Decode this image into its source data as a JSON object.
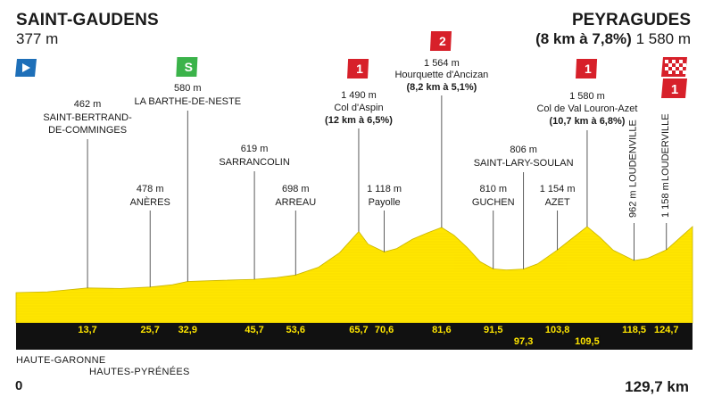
{
  "header": {
    "start_name": "SAINT-GAUDENS",
    "start_alt": "377 m",
    "finish_name": "PEYRAGUDES",
    "finish_climb": "(8 km à 7,8%)",
    "finish_alt": "1 580 m"
  },
  "footer": {
    "region1": "HAUTE-GARONNE",
    "region2": "HAUTES-PYRÉNÉES",
    "km_start": "0",
    "km_total": "129,7 km"
  },
  "colors": {
    "profile_fill": "#ffe600",
    "profile_edge": "#c8b300",
    "axis_band": "#111111",
    "km_text": "#ffe600",
    "climb_cat": "#d7202a",
    "sprint": "#3bb34a",
    "start_flag": "#1e6fb8"
  },
  "chart_data": {
    "type": "area",
    "title": "",
    "xlabel": "",
    "ylabel": "",
    "x_unit": "km",
    "y_unit": "m",
    "xlim": [
      0,
      129.7
    ],
    "profile": [
      [
        0,
        377
      ],
      [
        6,
        392
      ],
      [
        13.7,
        462
      ],
      [
        20,
        452
      ],
      [
        25.7,
        478
      ],
      [
        30,
        520
      ],
      [
        32.9,
        580
      ],
      [
        39,
        600
      ],
      [
        45.7,
        619
      ],
      [
        50,
        650
      ],
      [
        53.6,
        698
      ],
      [
        58,
        840
      ],
      [
        62,
        1100
      ],
      [
        65.7,
        1490
      ],
      [
        67.5,
        1260
      ],
      [
        70.6,
        1118
      ],
      [
        73,
        1180
      ],
      [
        76,
        1350
      ],
      [
        79,
        1470
      ],
      [
        81.6,
        1564
      ],
      [
        84,
        1420
      ],
      [
        86.5,
        1200
      ],
      [
        89,
        940
      ],
      [
        91.5,
        810
      ],
      [
        94,
        790
      ],
      [
        97.3,
        806
      ],
      [
        100,
        900
      ],
      [
        103.8,
        1154
      ],
      [
        106,
        1320
      ],
      [
        109.5,
        1580
      ],
      [
        112,
        1380
      ],
      [
        114.5,
        1150
      ],
      [
        118.5,
        962
      ],
      [
        121,
        1000
      ],
      [
        124.7,
        1158
      ],
      [
        129.7,
        1580
      ]
    ],
    "waypoints": [
      {
        "km": 13.7,
        "km_label": "13,7",
        "alt": "462 m",
        "name": "SAINT-BERTRAND-\nDE-COMMINGES"
      },
      {
        "km": 25.7,
        "km_label": "25,7",
        "alt": "478 m",
        "name": "ANÈRES"
      },
      {
        "km": 32.9,
        "km_label": "32,9",
        "alt": "580 m",
        "name": "LA BARTHE-DE-NESTE",
        "badge": "sprint"
      },
      {
        "km": 45.7,
        "km_label": "45,7",
        "alt": "619 m",
        "name": "SARRANCOLIN"
      },
      {
        "km": 53.6,
        "km_label": "53,6",
        "alt": "698 m",
        "name": "ARREAU"
      },
      {
        "km": 65.7,
        "km_label": "65,7",
        "alt": "1 490 m",
        "name": "Col d'Aspin",
        "detail": "(12 km à 6,5%)",
        "badge": "1"
      },
      {
        "km": 70.6,
        "km_label": "70,6",
        "alt": "1 118 m",
        "name": "Payolle"
      },
      {
        "km": 81.6,
        "km_label": "81,6",
        "alt": "1 564 m",
        "name": "Hourquette d'Ancizan",
        "detail": "(8,2 km à 5,1%)",
        "badge": "2"
      },
      {
        "km": 91.5,
        "km_label": "91,5",
        "alt": "810 m",
        "name": "GUCHEN"
      },
      {
        "km": 97.3,
        "km_label": "97,3",
        "alt": "806 m",
        "name": "SAINT-LARY-SOULAN"
      },
      {
        "km": 103.8,
        "km_label": "103,8",
        "alt": "1 154 m",
        "name": "AZET"
      },
      {
        "km": 109.5,
        "km_label": "109,5",
        "alt": "1 580 m",
        "name": "Col de Val Louron-Azet",
        "detail": "(10,7 km à 6,8%)",
        "badge": "1"
      },
      {
        "km": 118.5,
        "km_label": "118,5",
        "alt": "962 m",
        "name": "LOUDENVILLE",
        "vertical": true
      },
      {
        "km": 124.7,
        "km_label": "124,7",
        "alt": "1 158 m",
        "name": "LOUDERVILLE",
        "vertical": true
      }
    ],
    "finish_badge": "1",
    "sprint_badge_text": "S"
  }
}
